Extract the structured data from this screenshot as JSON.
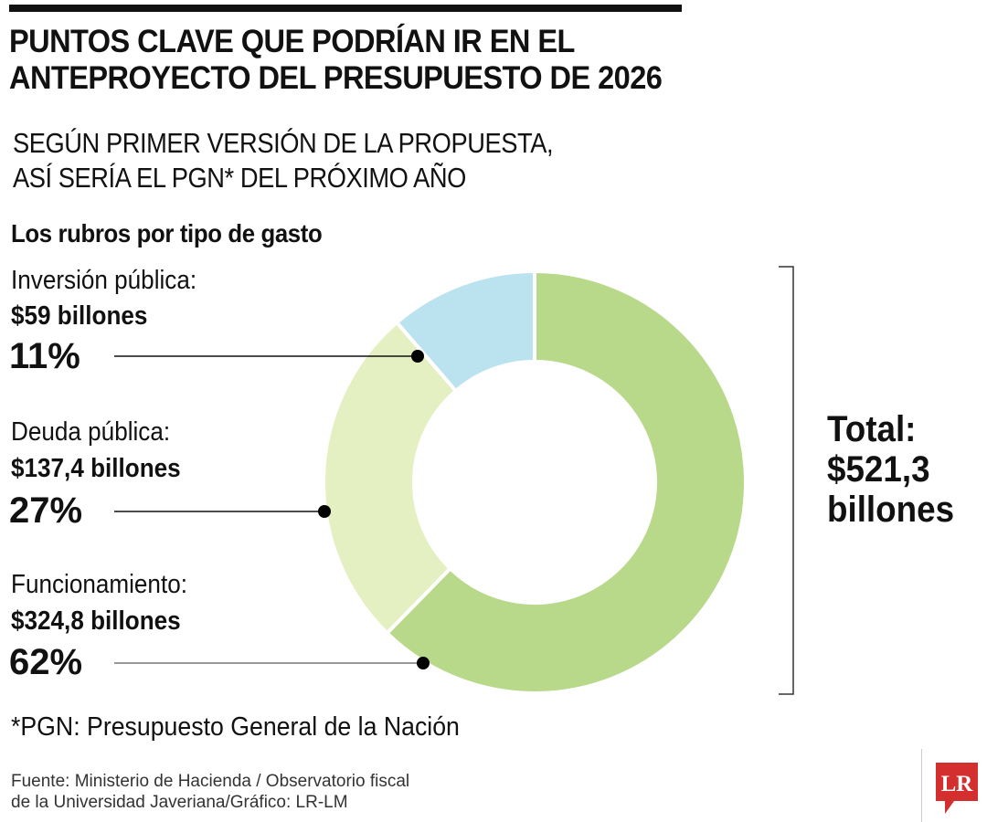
{
  "title": [
    "PUNTOS CLAVE QUE PODRÍAN IR EN EL",
    "ANTEPROYECTO DEL PRESUPUESTO DE 2026"
  ],
  "subtitle": [
    "SEGÚN PRIMER VERSIÓN DE LA PROPUESTA,",
    "ASÍ SERÍA EL PGN* DEL PRÓXIMO AÑO"
  ],
  "chart_data": {
    "type": "pie",
    "title": "Los rubros por tipo de gasto",
    "slices": [
      {
        "label": "Funcionamiento:",
        "value": 324.8,
        "amount": "$324,8 billones",
        "percent": "62%",
        "color": "#b8d989"
      },
      {
        "label": "Deuda pública:",
        "value": 137.4,
        "amount": "$137,4 billones",
        "percent": "27%",
        "color": "#e4efc2"
      },
      {
        "label": "Inversión pública:",
        "value": 59,
        "amount": "$59 billones",
        "percent": "11%",
        "color": "#bae3ef"
      }
    ],
    "total": [
      "Total:",
      "$521,3",
      "billones"
    ]
  },
  "footnote": "*PGN: Presupuesto General de la Nación",
  "source": [
    "Fuente: Ministerio de Hacienda / Observatorio fiscal",
    "de la Universidad Javeriana/Gráfico: LR-LM"
  ],
  "logo": {
    "text": "LR",
    "color": "#d32f2f"
  }
}
